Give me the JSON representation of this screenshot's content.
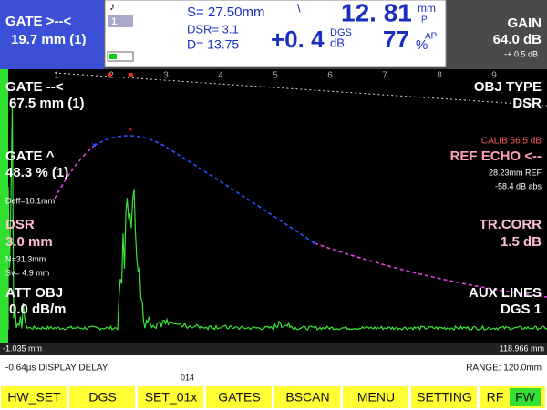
{
  "header": {
    "gate_left": {
      "label": "GATE >--<",
      "value": "19.7 mm (1)"
    },
    "status": {
      "channel": "1",
      "s": "S=  27.50mm",
      "mark": "\\",
      "dsr": "DSR=  3.1",
      "d": "D= 13.75",
      "db": "+0. 4",
      "db_top": "DGS",
      "db_unit": "dB",
      "depth": "12. 81",
      "depth_unit": "mm",
      "depth_sub": "P",
      "amp": "77",
      "amp_unit": "%",
      "amp_sub": "AP"
    },
    "gain": {
      "label": "GAIN",
      "value": "64.0 dB",
      "step": "-+ 0.5 dB"
    }
  },
  "screen": {
    "scale": [
      "1",
      "2",
      "3",
      "4",
      "5",
      "6",
      "7",
      "8",
      "9"
    ],
    "left": {
      "gate_a": "GATE --<",
      "gate_a_value": "67.5 mm (1)",
      "gate_b": "GATE ^",
      "gate_b_value": "48.3 % (1)",
      "deff": "Deff=10.1mm",
      "dsr": "DSR",
      "dsr_value": "3.0 mm",
      "n": "N=31.3mm",
      "sv": "Sv= 4.9 mm",
      "att": "ATT OBJ",
      "att_value": "0.0 dB/m"
    },
    "right": {
      "obj_type": "OBJ TYPE",
      "obj_type_value": "DSR",
      "calib": "CALIB  56.5 dB",
      "ref_echo": "REF ECHO <--",
      "ref": "28.23mm REF",
      "abs": "-58.4 dB abs",
      "tr_corr": "TR.CORR",
      "tr_corr_value": "1.5 dB",
      "aux": "AUX LINES",
      "aux_value": "DGS 1"
    },
    "axis_start": "-1.035 mm",
    "axis_end": "118.966 mm"
  },
  "status_line": {
    "delay": "-0.64µs  DISPLAY DELAY",
    "page": "014",
    "range": "RANGE:  120.0mm"
  },
  "softkeys": [
    "HW_SET",
    "DGS",
    "SET_01x",
    "GATES",
    "BSCAN",
    "MENU",
    "SETTING",
    "RF"
  ],
  "softkey_extra": "FW"
}
